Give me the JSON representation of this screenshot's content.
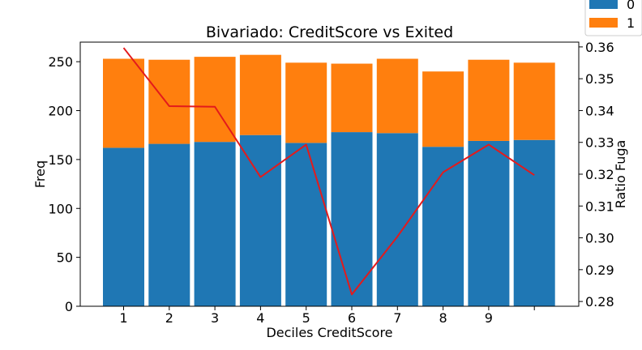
{
  "chart_data": {
    "type": "bar",
    "title": "Bivariado: CreditScore vs Exited",
    "xlabel": "Deciles CreditScore",
    "ylabel": "Freq",
    "y2label": "Ratio Fuga",
    "categories": [
      "1",
      "2",
      "3",
      "4",
      "5",
      "6",
      "7",
      "8",
      "9",
      ""
    ],
    "stacked": true,
    "ylim": [
      0,
      270
    ],
    "yticks": [
      0,
      50,
      100,
      150,
      200,
      250
    ],
    "y2lim": [
      0.2785,
      0.3615
    ],
    "y2ticks": [
      0.28,
      0.29,
      0.3,
      0.31,
      0.32,
      0.33,
      0.34,
      0.35,
      0.36
    ],
    "y2tick_labels": [
      "0.28",
      "0.29",
      "0.30",
      "0.31",
      "0.32",
      "0.33",
      "0.34",
      "0.35",
      "0.36"
    ],
    "series": [
      {
        "name": "0",
        "color": "#1f77b4",
        "values": [
          162,
          166,
          168,
          175,
          167,
          178,
          177,
          163,
          169,
          170
        ]
      },
      {
        "name": "1",
        "color": "#ff7f0e",
        "values": [
          91,
          86,
          87,
          82,
          82,
          70,
          76,
          77,
          83,
          79
        ]
      }
    ],
    "line": {
      "axis": "right",
      "color": "#e31a1c",
      "values": [
        0.3597,
        0.3414,
        0.3412,
        0.3191,
        0.3293,
        0.2822,
        0.3004,
        0.3206,
        0.3293,
        0.3197
      ]
    },
    "legend": {
      "position": "top-right, outside"
    },
    "grid": false
  }
}
